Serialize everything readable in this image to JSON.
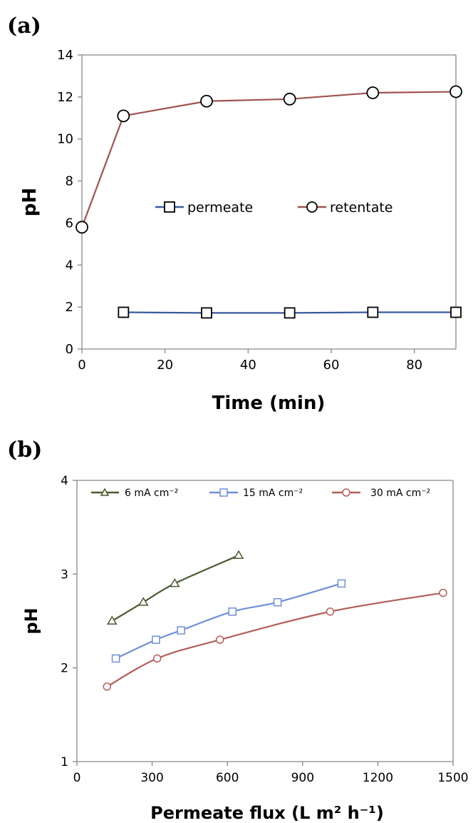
{
  "chart_data": [
    {
      "type": "line",
      "panel_label": "(a)",
      "xlabel": "Time (min)",
      "ylabel": "pH",
      "xlim": [
        0,
        90
      ],
      "ylim": [
        0,
        14
      ],
      "x_ticks": [
        "0",
        "20",
        "40",
        "60",
        "80"
      ],
      "y_ticks": [
        "0",
        "2",
        "4",
        "6",
        "8",
        "10",
        "12",
        "14"
      ],
      "legend_position": "center",
      "series": [
        {
          "name": "permeate",
          "color": "#3a5aa0",
          "marker": "square",
          "x": [
            10,
            30,
            50,
            70,
            90
          ],
          "y": [
            1.75,
            1.72,
            1.72,
            1.75,
            1.75
          ]
        },
        {
          "name": "retentate",
          "color": "#a0524f",
          "marker": "circle",
          "x": [
            0,
            10,
            30,
            50,
            70,
            90
          ],
          "y": [
            5.8,
            11.1,
            11.8,
            11.9,
            12.2,
            12.25
          ]
        }
      ]
    },
    {
      "type": "line",
      "panel_label": "(b)",
      "xlabel": "Permeate flux (L m² h⁻¹)",
      "ylabel": "pH",
      "xlim": [
        0,
        1500
      ],
      "ylim": [
        1,
        4
      ],
      "x_ticks": [
        "0",
        "300",
        "600",
        "900",
        "1200",
        "1500"
      ],
      "y_ticks": [
        "1",
        "2",
        "3",
        "4"
      ],
      "legend_position": "top",
      "series": [
        {
          "name": "6 mA cm⁻²",
          "color": "#4a5a2e",
          "marker": "triangle",
          "x": [
            140,
            265,
            390,
            645
          ],
          "y": [
            2.5,
            2.7,
            2.9,
            3.2
          ]
        },
        {
          "name": "15 mA cm⁻²",
          "color": "#6f8fd6",
          "marker": "square",
          "x": [
            155,
            315,
            415,
            620,
            800,
            1055
          ],
          "y": [
            2.1,
            2.3,
            2.4,
            2.6,
            2.7,
            2.9
          ]
        },
        {
          "name": "30 mA cm⁻²",
          "color": "#b45e5a",
          "marker": "circle",
          "x": [
            120,
            320,
            570,
            1010,
            1460
          ],
          "y": [
            1.8,
            2.1,
            2.3,
            2.6,
            2.8
          ]
        }
      ]
    }
  ]
}
